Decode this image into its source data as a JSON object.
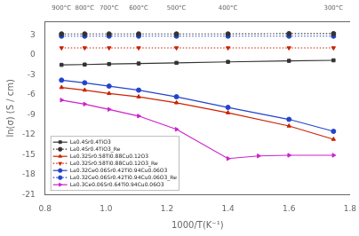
{
  "chart_data": {
    "type": "line",
    "xlabel": "1000/T(K⁻¹)",
    "ylabel": "ln(σ) (S / cm)",
    "xlim": [
      0.8,
      1.8
    ],
    "xticks": [
      0.8,
      {
        "value": 1.0,
        "label": "1.0"
      },
      1.2,
      1.4,
      1.6,
      1.8
    ],
    "ylim": [
      -21,
      5
    ],
    "yticks": [
      3,
      0,
      -3,
      -6,
      -9,
      -12,
      -15,
      -18,
      -21
    ],
    "x2lim": [
      0.8,
      1.8
    ],
    "x2ticks": [
      {
        "value": 0.854,
        "label": "900°C"
      },
      {
        "value": 0.93,
        "label": "800°C"
      },
      {
        "value": 1.01,
        "label": "700°C"
      },
      {
        "value": 1.107,
        "label": "600°C"
      },
      {
        "value": 1.231,
        "label": "500°C"
      },
      {
        "value": 1.4,
        "label": "400°C"
      },
      {
        "value": 1.746,
        "label": "300°C"
      }
    ],
    "grid": false,
    "legend": "lower left",
    "series": [
      {
        "name": "La0.4Sr0.4TiO3",
        "color": "#333333",
        "marker": "square",
        "line_style": "solid",
        "x": [
          0.854,
          0.93,
          1.01,
          1.107,
          1.231,
          1.4,
          1.6,
          1.746
        ],
        "values": [
          -1.5,
          -1.45,
          -1.38,
          -1.3,
          -1.2,
          -1.05,
          -0.9,
          -0.82
        ]
      },
      {
        "name": "La0.4Sr0.4TiO3_Re",
        "color": "#333333",
        "marker": "circle",
        "line_style": "dotted",
        "x": [
          0.854,
          0.93,
          1.01,
          1.107,
          1.231,
          1.4,
          1.6,
          1.746
        ],
        "values": [
          3.15,
          3.15,
          3.15,
          3.15,
          3.15,
          3.15,
          3.2,
          3.2
        ]
      },
      {
        "name": "La0.32Sr0.58Ti0.88Cu0.12O3",
        "color": "#cc2200",
        "marker": "triangle_up",
        "line_style": "solid",
        "x": [
          0.854,
          0.93,
          1.01,
          1.107,
          1.231,
          1.4,
          1.6,
          1.746
        ],
        "values": [
          -4.9,
          -5.3,
          -5.8,
          -6.3,
          -7.2,
          -8.7,
          -10.7,
          -12.7
        ]
      },
      {
        "name": "La0.32Sr0.58Ti0.88Cu0.12O3_Re",
        "color": "#cc2200",
        "marker": "triangle_down",
        "line_style": "dotted",
        "x": [
          0.854,
          0.93,
          1.01,
          1.107,
          1.231,
          1.4,
          1.6,
          1.746
        ],
        "values": [
          1.05,
          1.05,
          1.05,
          1.05,
          1.05,
          1.05,
          1.05,
          1.05
        ]
      },
      {
        "name": "La0.32Ce0.06Sr0.42Ti0.94Cu0.06O3",
        "color": "#2244cc",
        "marker": "circle",
        "line_style": "solid",
        "x": [
          0.854,
          0.93,
          1.01,
          1.107,
          1.231,
          1.4,
          1.6,
          1.746
        ],
        "values": [
          -3.8,
          -4.2,
          -4.7,
          -5.3,
          -6.3,
          -7.9,
          -9.7,
          -11.5
        ]
      },
      {
        "name": "La0.32Ce0.06Sr0.42Ti0.94Cu0.06O3_Re",
        "color": "#2244cc",
        "marker": "circle",
        "line_style": "dotted",
        "x": [
          0.854,
          0.93,
          1.01,
          1.107,
          1.231,
          1.4,
          1.6,
          1.746
        ],
        "values": [
          2.82,
          2.82,
          2.82,
          2.82,
          2.82,
          2.82,
          2.82,
          2.82
        ]
      },
      {
        "name": "La0.3Ce0.06Sr0.64Ti0.94Cu0.06O3",
        "color": "#cc22cc",
        "marker": "triangle_right",
        "line_style": "solid",
        "x": [
          0.854,
          0.93,
          1.01,
          1.107,
          1.231,
          1.4,
          1.5,
          1.6,
          1.746
        ],
        "values": [
          -6.8,
          -7.4,
          -8.2,
          -9.2,
          -11.2,
          -15.6,
          -15.2,
          -15.1,
          -15.1
        ]
      }
    ]
  }
}
